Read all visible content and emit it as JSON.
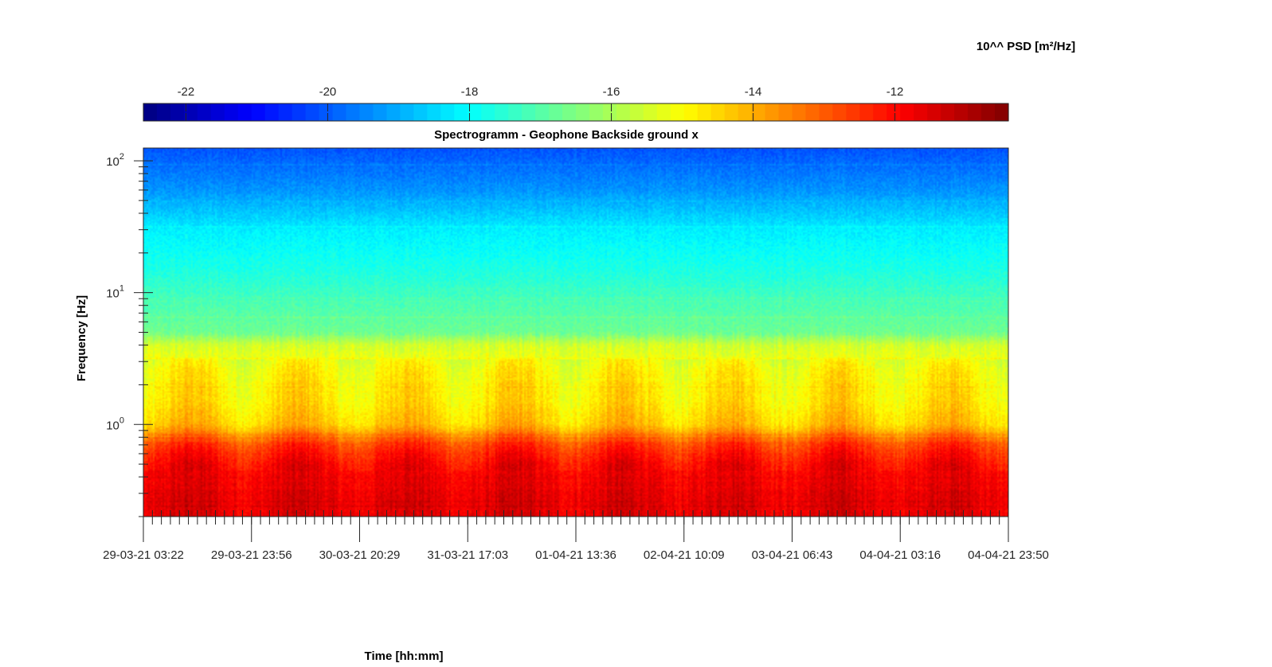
{
  "chart_data": {
    "type": "heatmap",
    "title": "Spectrogramm - Geophone Backside ground x",
    "xlabel": "Time [hh:mm]",
    "ylabel": "Frequency [Hz]",
    "x_tick_labels": [
      "29-03-21 03:22",
      "29-03-21 23:56",
      "30-03-21 20:29",
      "31-03-21 17:03",
      "01-04-21 13:36",
      "02-04-21 10:09",
      "03-04-21 06:43",
      "04-04-21 03:16",
      "04-04-21 23:50"
    ],
    "y_scale": "log",
    "y_range_hz": [
      0.2,
      125
    ],
    "y_ticks": [
      {
        "base": "10",
        "exp": "0",
        "value": 1
      },
      {
        "base": "10",
        "exp": "1",
        "value": 10
      },
      {
        "base": "10",
        "exp": "2",
        "value": 100
      }
    ],
    "colorbar": {
      "label": "10^^ PSD [m²/Hz]",
      "location": "top",
      "range": [
        -22.6,
        -10.4
      ],
      "ticks": [
        "-22",
        "-20",
        "-18",
        "-16",
        "-14",
        "-12"
      ],
      "colormap": "jet"
    },
    "psd_profile": {
      "frequency_hz": [
        0.2,
        0.3,
        0.5,
        0.7,
        0.85,
        1.0,
        1.5,
        2.5,
        4,
        5,
        8,
        15,
        30,
        60,
        125
      ],
      "log10_psd": [
        -11.6,
        -11.6,
        -11.9,
        -12.6,
        -13.6,
        -14.3,
        -14.7,
        -14.9,
        -15.5,
        -16.7,
        -17.1,
        -17.7,
        -18.2,
        -19.3,
        -20.1
      ]
    },
    "grid": false
  }
}
